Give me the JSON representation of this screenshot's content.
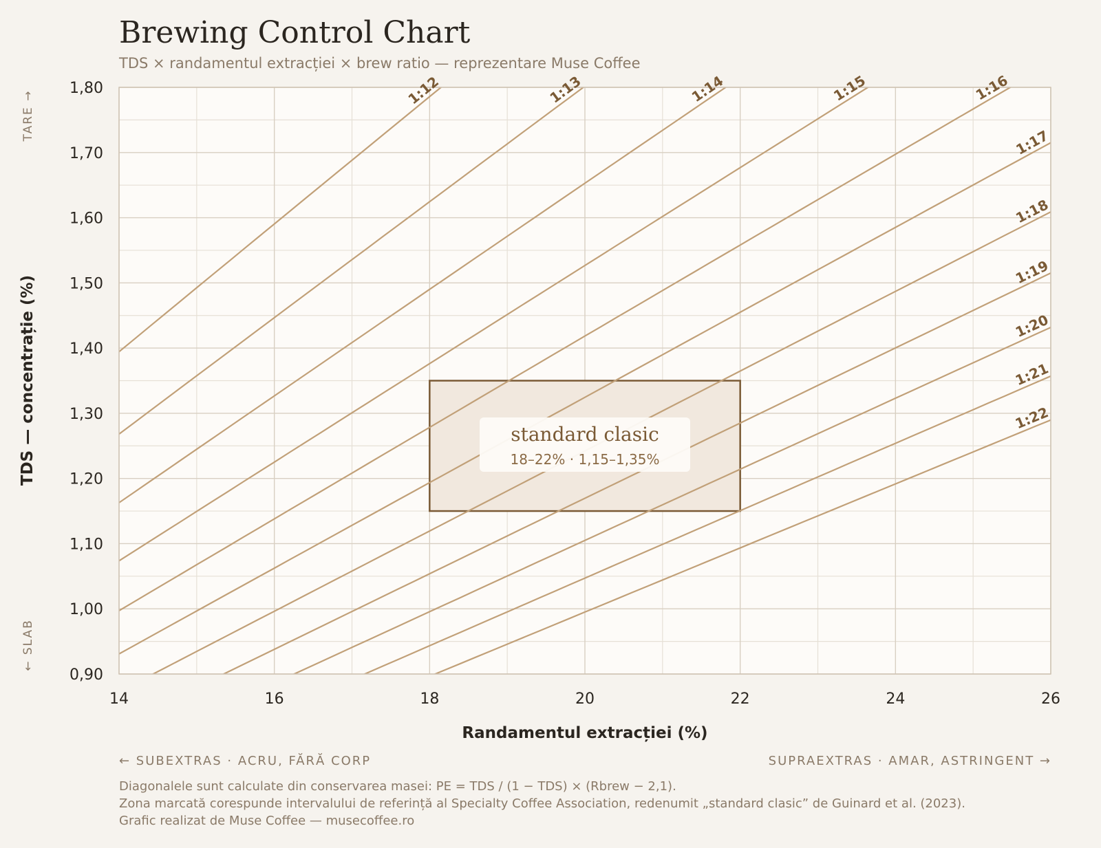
{
  "title": "Brewing Control Chart",
  "subtitle": "TDS × randamentul extracției × brew ratio — reprezentare Muse Coffee",
  "colors": {
    "background": "#f6f3ee",
    "plot_background": "#fdfbf8",
    "ratio_line": "#c1a078",
    "ratio_label": "#7a5a35",
    "zone_fill": "#f1e8de",
    "zone_stroke": "#7a5a35",
    "grid": "#ddd6cb",
    "text": "#2b2620",
    "muted": "#8a7a68"
  },
  "chart_data": {
    "type": "line",
    "title": "Brewing Control Chart",
    "xlabel": "Randamentul extracției (%)",
    "ylabel": "TDS — concentrație (%)",
    "xlim": [
      14,
      26
    ],
    "ylim": [
      0.9,
      1.8
    ],
    "x_ticks": [
      "14",
      "16",
      "18",
      "20",
      "22",
      "24",
      "26"
    ],
    "x_tick_values": [
      14,
      16,
      18,
      20,
      22,
      24,
      26
    ],
    "y_ticks": [
      "0,90",
      "1,00",
      "1,10",
      "1,20",
      "1,30",
      "1,40",
      "1,50",
      "1,60",
      "1,70",
      "1,80"
    ],
    "y_tick_values": [
      0.9,
      1.0,
      1.1,
      1.2,
      1.3,
      1.4,
      1.5,
      1.6,
      1.7,
      1.8
    ],
    "grid": true,
    "y_annotation_top": "TARE →",
    "y_annotation_bottom": "← SLAB",
    "ratio_formula": "PE = TDS / (1 − TDS) × (Rbrew − 2,1)",
    "retention": 2.1,
    "series": [
      {
        "name": "1:12",
        "ratio": 12
      },
      {
        "name": "1:13",
        "ratio": 13
      },
      {
        "name": "1:14",
        "ratio": 14
      },
      {
        "name": "1:15",
        "ratio": 15
      },
      {
        "name": "1:16",
        "ratio": 16
      },
      {
        "name": "1:17",
        "ratio": 17
      },
      {
        "name": "1:18",
        "ratio": 18
      },
      {
        "name": "1:19",
        "ratio": 19
      },
      {
        "name": "1:20",
        "ratio": 20
      },
      {
        "name": "1:21",
        "ratio": 21
      },
      {
        "name": "1:22",
        "ratio": 22
      }
    ],
    "zone": {
      "label": "standard clasic",
      "sublabel": "18–22% · 1,15–1,35%",
      "x_range": [
        18,
        22
      ],
      "y_range": [
        1.15,
        1.35
      ]
    }
  },
  "footer": {
    "left": "← SUBEXTRAS · ACRU, FĂRĂ CORP",
    "right": "SUPRAEXTRAS · AMAR, ASTRINGENT →"
  },
  "notes": [
    "Diagonalele sunt calculate din conservarea masei: PE = TDS / (1 − TDS) × (Rbrew − 2,1).",
    "Zona marcată corespunde intervalului de referință al Specialty Coffee Association, redenumit „standard clasic” de Guinard et al. (2023).",
    "Grafic realizat de Muse Coffee — musecoffee.ro"
  ]
}
